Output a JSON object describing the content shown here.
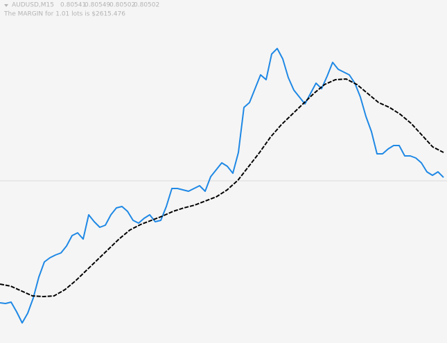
{
  "chart_data": {
    "type": "line",
    "symbol": "AUDUSD,M15",
    "ohlc": [
      0.80541,
      0.80549,
      0.80502,
      0.80502
    ],
    "margin_text": "The MARGIN for 1.01 lots is $2615.476",
    "ylim": [
      0.80034,
      0.81024
    ],
    "series": [
      {
        "color": "#1e88e5",
        "dashed": false,
        "values": [
          0.8015,
          0.80148,
          0.80152,
          0.80124,
          0.80092,
          0.8012,
          0.80164,
          0.80224,
          0.80268,
          0.8028,
          0.80288,
          0.80294,
          0.80314,
          0.80344,
          0.80352,
          0.80334,
          0.80404,
          0.80384,
          0.80368,
          0.80374,
          0.80404,
          0.80424,
          0.80428,
          0.80414,
          0.80388,
          0.8038,
          0.80394,
          0.80404,
          0.80384,
          0.80388,
          0.80428,
          0.8048,
          0.8048,
          0.80476,
          0.80472,
          0.8048,
          0.80488,
          0.80472,
          0.80514,
          0.80534,
          0.80554,
          0.80544,
          0.80524,
          0.80584,
          0.80714,
          0.80728,
          0.80768,
          0.80808,
          0.80794,
          0.80868,
          0.80884,
          0.80854,
          0.808,
          0.80764,
          0.80744,
          0.80724,
          0.80754,
          0.80784,
          0.80768,
          0.80804,
          0.80844,
          0.80824,
          0.80816,
          0.80808,
          0.80784,
          0.80744,
          0.80688,
          0.80644,
          0.8058,
          0.8058,
          0.80594,
          0.80604,
          0.80604,
          0.80574,
          0.80574,
          0.80568,
          0.80554,
          0.80528,
          0.80518,
          0.80528,
          0.80512
        ]
      },
      {
        "color": "#000000",
        "dashed": true,
        "values": [
          0.80204,
          0.80198,
          0.80184,
          0.8017,
          0.80168,
          0.8017,
          0.80188,
          0.80214,
          0.80244,
          0.80274,
          0.80304,
          0.80334,
          0.8036,
          0.80376,
          0.80388,
          0.804,
          0.80414,
          0.80424,
          0.80432,
          0.80444,
          0.80456,
          0.80476,
          0.80504,
          0.80544,
          0.80584,
          0.80628,
          0.80664,
          0.80694,
          0.80724,
          0.80754,
          0.8078,
          0.80794,
          0.80796,
          0.8078,
          0.80754,
          0.80728,
          0.80714,
          0.80694,
          0.80668,
          0.80634,
          0.806,
          0.80584
        ]
      }
    ]
  }
}
